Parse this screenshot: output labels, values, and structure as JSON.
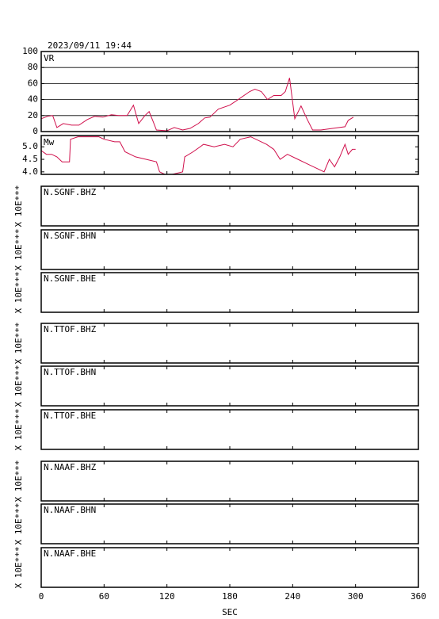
{
  "timestamp": "2023/09/11  19:44",
  "chart_data": [
    {
      "type": "line",
      "label": "VR",
      "color": "#d0104c",
      "grid": true,
      "xlim": [
        0,
        360
      ],
      "ylim": [
        0,
        100
      ],
      "yticks": [
        0,
        20,
        40,
        60,
        80,
        100
      ],
      "x": [
        0,
        6,
        11,
        15,
        21,
        29,
        36,
        44,
        51,
        59,
        67,
        74,
        82,
        88,
        93,
        99,
        103,
        107,
        110,
        120,
        127,
        135,
        142,
        150,
        156,
        161,
        169,
        180,
        188,
        199,
        204,
        210,
        216,
        222,
        229,
        233,
        237,
        242,
        248,
        254,
        259,
        267,
        278,
        290,
        293,
        298
      ],
      "values": [
        16,
        19,
        20,
        5,
        10,
        8,
        8,
        15,
        19,
        18,
        21,
        20,
        20,
        33,
        10,
        20,
        25,
        12,
        2,
        1,
        5,
        2,
        4,
        10,
        17,
        18,
        28,
        33,
        40,
        50,
        53,
        50,
        40,
        45,
        45,
        50,
        67,
        16,
        32,
        15,
        2,
        2,
        4,
        6,
        14,
        18
      ]
    },
    {
      "type": "line",
      "label": "Mw",
      "color": "#d0104c",
      "grid": false,
      "xlim": [
        0,
        360
      ],
      "ylim": [
        3.9,
        5.45
      ],
      "yticks": [
        {
          "value": 4,
          "label": "4.0"
        },
        4.5,
        {
          "value": 5,
          "label": "5.0"
        }
      ],
      "x": [
        0,
        5,
        10,
        15,
        20,
        27,
        28,
        35,
        45,
        55,
        60,
        70,
        75,
        80,
        90,
        100,
        110,
        113,
        118,
        125,
        135,
        137,
        145,
        155,
        165,
        175,
        183,
        190,
        200,
        210,
        215,
        222,
        228,
        235,
        245,
        255,
        265,
        270,
        275,
        280,
        285,
        290,
        293,
        297,
        300
      ],
      "values": [
        4.85,
        4.7,
        4.7,
        4.6,
        4.4,
        4.4,
        5.3,
        5.4,
        5.4,
        5.4,
        5.3,
        5.2,
        5.2,
        4.8,
        4.6,
        4.5,
        4.4,
        4.0,
        3.9,
        3.9,
        4.0,
        4.6,
        4.8,
        5.1,
        5.0,
        5.1,
        5.0,
        5.3,
        5.4,
        5.2,
        5.1,
        4.9,
        4.5,
        4.7,
        4.5,
        4.3,
        4.1,
        4.0,
        4.5,
        4.2,
        4.6,
        5.1,
        4.7,
        4.9,
        4.9
      ]
    }
  ],
  "panels": [
    {
      "label": "N.SGNF.BHZ",
      "ylabel": "X 10E***"
    },
    {
      "label": "N.SGNF.BHN",
      "ylabel": "X 10E***"
    },
    {
      "label": "N.SGNF.BHE",
      "ylabel": "X 10E***"
    },
    {
      "label": "N.TTOF.BHZ",
      "ylabel": "X 10E***"
    },
    {
      "label": "N.TTOF.BHN",
      "ylabel": "X 10E***"
    },
    {
      "label": "N.TTOF.BHE",
      "ylabel": "X 10E***"
    },
    {
      "label": "N.NAAF.BHZ",
      "ylabel": "X 10E***"
    },
    {
      "label": "N.NAAF.BHN",
      "ylabel": "X 10E***"
    },
    {
      "label": "N.NAAF.BHE",
      "ylabel": "X 10E***"
    }
  ],
  "x_axis": {
    "label": "SEC",
    "xlim": [
      0,
      360
    ],
    "xticks": [
      0,
      60,
      120,
      180,
      240,
      300,
      360
    ]
  }
}
